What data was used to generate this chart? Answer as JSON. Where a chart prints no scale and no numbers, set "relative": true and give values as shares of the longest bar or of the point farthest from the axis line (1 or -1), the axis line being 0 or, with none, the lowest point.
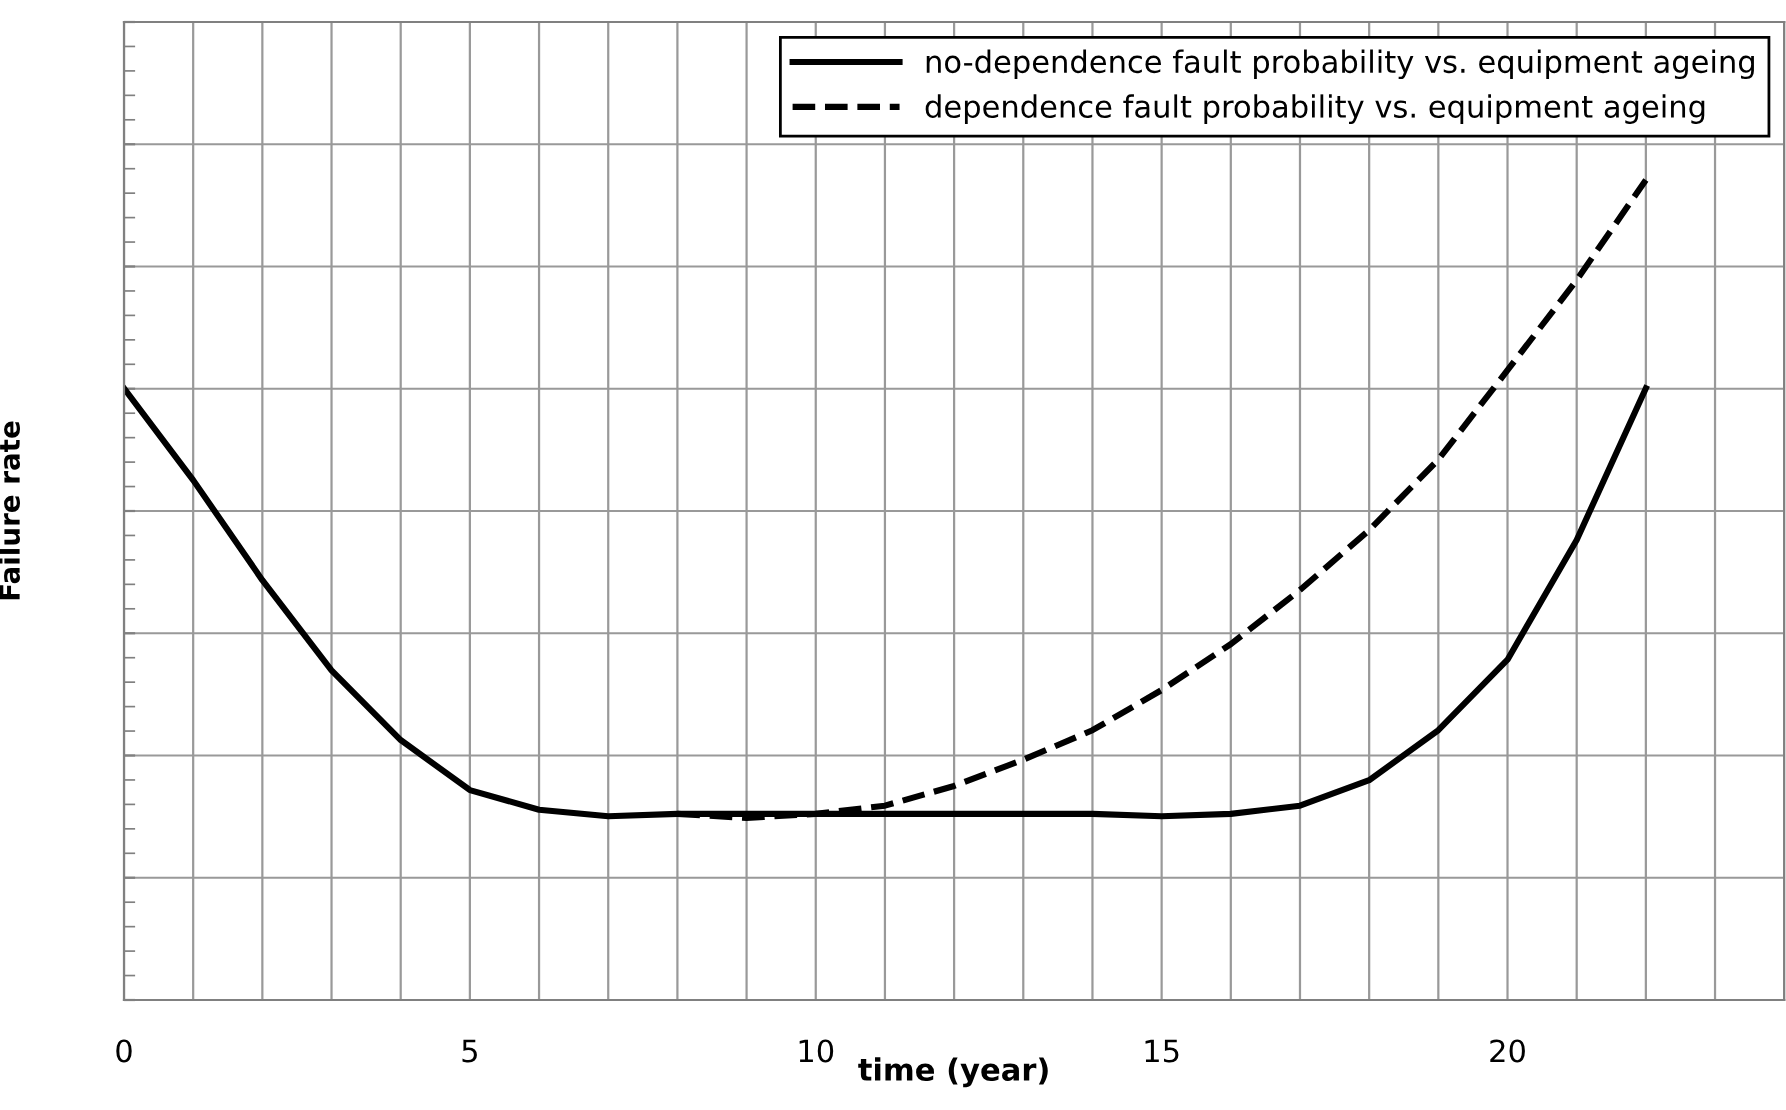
{
  "chart_data": {
    "type": "line",
    "relative": true,
    "xlabel": "time (year)",
    "ylabel": "Failure rate",
    "xlim": [
      0,
      24
    ],
    "xticks": [
      0,
      5,
      10,
      15,
      20
    ],
    "grid": true,
    "legend": "top right",
    "marker": "none",
    "series": [
      {
        "name": "no-dependence fault probability vs. equipment ageing",
        "color": "#000000",
        "line_style": "solid",
        "x": [
          0,
          1,
          2,
          3,
          4,
          5,
          6,
          7,
          8,
          9,
          10,
          11,
          12,
          13,
          14,
          15,
          16,
          17,
          18,
          19,
          20,
          21,
          22
        ],
        "values": [
          0.746,
          0.634,
          0.512,
          0.402,
          0.317,
          0.256,
          0.232,
          0.224,
          0.227,
          0.227,
          0.227,
          0.227,
          0.227,
          0.227,
          0.227,
          0.224,
          0.227,
          0.237,
          0.268,
          0.329,
          0.415,
          0.561,
          0.746
        ]
      },
      {
        "name": "dependence fault probability vs. equipment ageing",
        "color": "#000000",
        "line_style": "dashed",
        "x": [
          8,
          9,
          10,
          11,
          12,
          13,
          14,
          15,
          16,
          17,
          18,
          19,
          20,
          21,
          22
        ],
        "values": [
          0.227,
          0.222,
          0.227,
          0.237,
          0.261,
          0.293,
          0.329,
          0.378,
          0.434,
          0.5,
          0.573,
          0.659,
          0.768,
          0.878,
          1.0
        ]
      }
    ]
  }
}
